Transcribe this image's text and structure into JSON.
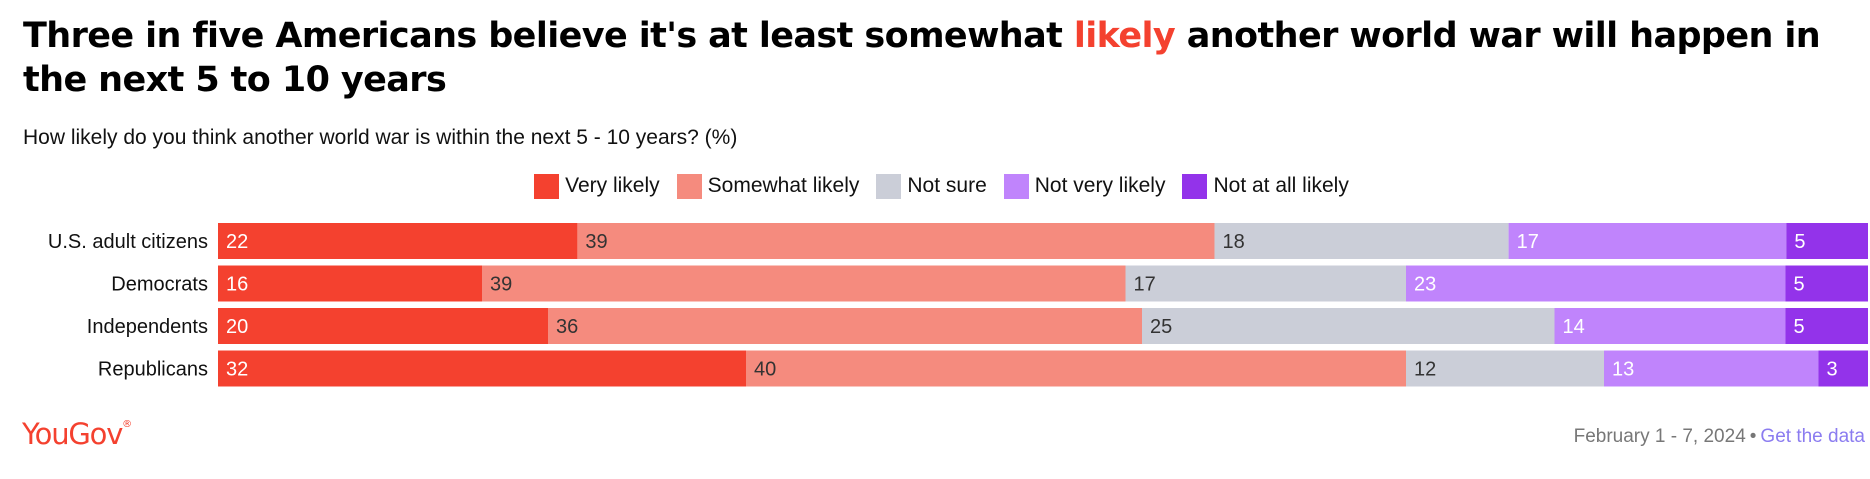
{
  "header": {
    "title_before": "Three in five Americans believe it's at least somewhat ",
    "title_highlight": "likely",
    "title_after": " another world war will happen in the next 5 to 10 years",
    "subtitle": "How likely do you think another world war is within the next 5 - 10 years? (%)"
  },
  "colors": {
    "accent": "#f4412f",
    "very_likely": "#f4412f",
    "somewhat_likely": "#f58b7e",
    "not_sure": "#cbced8",
    "not_very_likely": "#c084fc",
    "not_at_all_likely": "#9333ea",
    "link": "#8b7cf0"
  },
  "chart_data": {
    "type": "bar",
    "stacked": true,
    "orientation": "horizontal",
    "categories": [
      "U.S. adult citizens",
      "Democrats",
      "Independents",
      "Republicans"
    ],
    "series": [
      {
        "name": "Very likely",
        "color": "#f4412f",
        "label_color": "#ffffff",
        "values": [
          22,
          16,
          20,
          32
        ]
      },
      {
        "name": "Somewhat likely",
        "color": "#f58b7e",
        "label_color": "#333333",
        "values": [
          39,
          39,
          36,
          40
        ]
      },
      {
        "name": "Not sure",
        "color": "#cbced8",
        "label_color": "#333333",
        "values": [
          18,
          17,
          25,
          12
        ]
      },
      {
        "name": "Not very likely",
        "color": "#c084fc",
        "label_color": "#ffffff",
        "values": [
          17,
          23,
          14,
          13
        ]
      },
      {
        "name": "Not at all likely",
        "color": "#9333ea",
        "label_color": "#ffffff",
        "values": [
          5,
          5,
          5,
          3
        ]
      }
    ],
    "legend_position": "top-center",
    "grid": false
  },
  "footer": {
    "brand": "YouGov",
    "date": "February 1 - 7, 2024",
    "separator": "•",
    "link_label": "Get the data"
  }
}
